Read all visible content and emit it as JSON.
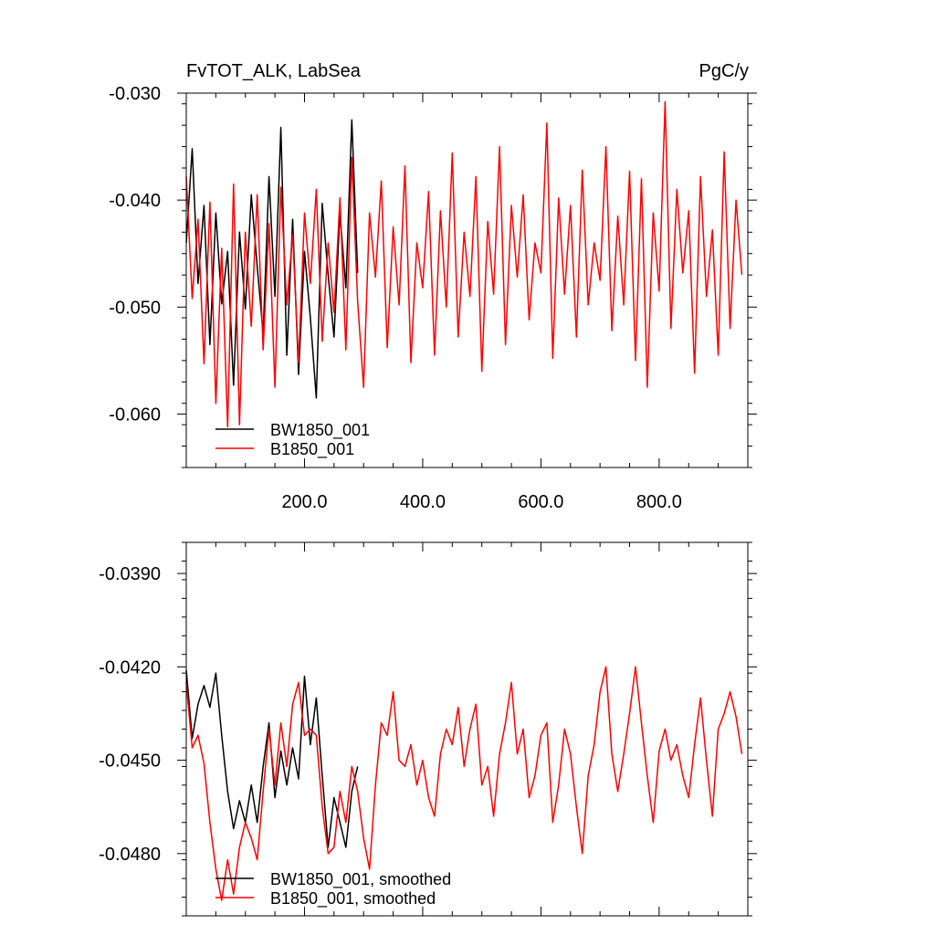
{
  "chart_data": [
    {
      "type": "line",
      "title_left": "FvTOT_ALK, LabSea",
      "title_right": "PgC/y",
      "xlim": [
        0,
        950
      ],
      "ylim": [
        -0.065,
        -0.03
      ],
      "xticks": [
        200,
        400,
        600,
        800
      ],
      "xtick_labels": [
        "200.0",
        "400.0",
        "600.0",
        "800.0"
      ],
      "yticks": [
        -0.03,
        -0.04,
        -0.05,
        -0.06
      ],
      "ytick_labels": [
        "-0.030",
        "-0.040",
        "-0.050",
        "-0.060"
      ],
      "legend_position": "bottom-left",
      "series": [
        {
          "name": "BW1850_001",
          "color": "#000000",
          "x": [
            0,
            10,
            20,
            30,
            40,
            50,
            60,
            70,
            80,
            90,
            100,
            110,
            120,
            130,
            140,
            150,
            160,
            170,
            180,
            190,
            200,
            210,
            220,
            230,
            240,
            250,
            260,
            270,
            280,
            290
          ],
          "y": [
            -0.044,
            -0.0352,
            -0.0478,
            -0.0405,
            -0.0535,
            -0.0412,
            -0.0497,
            -0.0448,
            -0.0573,
            -0.043,
            -0.0502,
            -0.0395,
            -0.0462,
            -0.0525,
            -0.0378,
            -0.049,
            -0.0332,
            -0.0545,
            -0.0418,
            -0.0563,
            -0.0448,
            -0.051,
            -0.0585,
            -0.0403,
            -0.047,
            -0.0528,
            -0.0412,
            -0.0482,
            -0.0325,
            -0.0468
          ]
        },
        {
          "name": "B1850_001",
          "color": "#ff0000",
          "x": [
            0,
            10,
            20,
            30,
            40,
            50,
            60,
            70,
            80,
            90,
            100,
            110,
            120,
            130,
            140,
            150,
            160,
            170,
            180,
            190,
            200,
            210,
            220,
            230,
            240,
            250,
            260,
            270,
            280,
            290,
            300,
            310,
            320,
            330,
            340,
            350,
            360,
            370,
            380,
            390,
            400,
            410,
            420,
            430,
            440,
            450,
            460,
            470,
            480,
            490,
            500,
            510,
            520,
            530,
            540,
            550,
            560,
            570,
            580,
            590,
            600,
            610,
            620,
            630,
            640,
            650,
            660,
            670,
            680,
            690,
            700,
            710,
            720,
            730,
            740,
            750,
            760,
            770,
            780,
            790,
            800,
            810,
            820,
            830,
            840,
            850,
            860,
            870,
            880,
            890,
            900,
            910,
            920,
            930,
            940
          ],
          "y": [
            -0.0378,
            -0.0492,
            -0.0418,
            -0.0553,
            -0.0402,
            -0.059,
            -0.0445,
            -0.0612,
            -0.0385,
            -0.061,
            -0.043,
            -0.0518,
            -0.0395,
            -0.054,
            -0.0422,
            -0.0575,
            -0.0388,
            -0.0498,
            -0.0432,
            -0.0552,
            -0.0412,
            -0.0478,
            -0.039,
            -0.0532,
            -0.044,
            -0.0505,
            -0.0398,
            -0.054,
            -0.036,
            -0.0495,
            -0.0575,
            -0.0412,
            -0.0472,
            -0.0382,
            -0.0538,
            -0.0425,
            -0.0498,
            -0.0368,
            -0.0552,
            -0.044,
            -0.0482,
            -0.0392,
            -0.0545,
            -0.041,
            -0.05,
            -0.0356,
            -0.0528,
            -0.043,
            -0.049,
            -0.0378,
            -0.056,
            -0.042,
            -0.0488,
            -0.035,
            -0.0535,
            -0.0405,
            -0.0472,
            -0.0395,
            -0.0512,
            -0.044,
            -0.0468,
            -0.0328,
            -0.0548,
            -0.0398,
            -0.0488,
            -0.0405,
            -0.0528,
            -0.0372,
            -0.0498,
            -0.044,
            -0.0475,
            -0.035,
            -0.0522,
            -0.0415,
            -0.0498,
            -0.0373,
            -0.055,
            -0.038,
            -0.0575,
            -0.0412,
            -0.0485,
            -0.0308,
            -0.052,
            -0.039,
            -0.0468,
            -0.041,
            -0.0562,
            -0.0378,
            -0.049,
            -0.0428,
            -0.0545,
            -0.0355,
            -0.052,
            -0.04,
            -0.047
          ]
        }
      ]
    },
    {
      "type": "line",
      "xlim": [
        0,
        950
      ],
      "ylim": [
        -0.05,
        -0.038
      ],
      "xticks": [
        200,
        400,
        600,
        800
      ],
      "yticks": [
        -0.039,
        -0.042,
        -0.045,
        -0.048
      ],
      "ytick_labels": [
        "-0.0390",
        "-0.0420",
        "-0.0450",
        "-0.0480"
      ],
      "legend_position": "bottom-left",
      "series": [
        {
          "name": "BW1850_001, smoothed",
          "color": "#000000",
          "x": [
            0,
            10,
            20,
            30,
            40,
            50,
            60,
            70,
            80,
            90,
            100,
            110,
            120,
            130,
            140,
            150,
            160,
            170,
            180,
            190,
            200,
            210,
            220,
            230,
            240,
            250,
            260,
            270,
            280,
            290
          ],
          "y": [
            -0.0421,
            -0.0443,
            -0.0432,
            -0.0426,
            -0.0433,
            -0.0422,
            -0.0442,
            -0.046,
            -0.0472,
            -0.0463,
            -0.047,
            -0.0458,
            -0.047,
            -0.0452,
            -0.0438,
            -0.0462,
            -0.0447,
            -0.0458,
            -0.0446,
            -0.0456,
            -0.0423,
            -0.0445,
            -0.043,
            -0.0455,
            -0.0478,
            -0.0462,
            -0.047,
            -0.0478,
            -0.046,
            -0.0452
          ]
        },
        {
          "name": "B1850_001, smoothed",
          "color": "#ff0000",
          "x": [
            0,
            10,
            20,
            30,
            40,
            50,
            60,
            70,
            80,
            90,
            100,
            110,
            120,
            130,
            140,
            150,
            160,
            170,
            180,
            190,
            200,
            210,
            220,
            230,
            240,
            250,
            260,
            270,
            280,
            290,
            300,
            310,
            320,
            330,
            340,
            350,
            360,
            370,
            380,
            390,
            400,
            410,
            420,
            430,
            440,
            450,
            460,
            470,
            480,
            490,
            500,
            510,
            520,
            530,
            540,
            550,
            560,
            570,
            580,
            590,
            600,
            610,
            620,
            630,
            640,
            650,
            660,
            670,
            680,
            690,
            700,
            710,
            720,
            730,
            740,
            750,
            760,
            770,
            780,
            790,
            800,
            810,
            820,
            830,
            840,
            850,
            860,
            870,
            880,
            890,
            900,
            910,
            920,
            930,
            940
          ],
          "y": [
            -0.0425,
            -0.0446,
            -0.0442,
            -0.0451,
            -0.047,
            -0.0485,
            -0.0495,
            -0.0482,
            -0.0493,
            -0.0478,
            -0.047,
            -0.0475,
            -0.0482,
            -0.046,
            -0.044,
            -0.0458,
            -0.0438,
            -0.0452,
            -0.0432,
            -0.0425,
            -0.0442,
            -0.044,
            -0.0442,
            -0.0465,
            -0.048,
            -0.0478,
            -0.046,
            -0.047,
            -0.0452,
            -0.046,
            -0.0475,
            -0.0485,
            -0.0458,
            -0.0438,
            -0.0442,
            -0.0428,
            -0.045,
            -0.0452,
            -0.0445,
            -0.0458,
            -0.045,
            -0.0462,
            -0.0468,
            -0.0448,
            -0.044,
            -0.0445,
            -0.0433,
            -0.0452,
            -0.044,
            -0.0432,
            -0.0458,
            -0.0452,
            -0.0468,
            -0.0448,
            -0.0438,
            -0.0425,
            -0.0448,
            -0.044,
            -0.0462,
            -0.0455,
            -0.0442,
            -0.0438,
            -0.047,
            -0.0458,
            -0.044,
            -0.0448,
            -0.0465,
            -0.048,
            -0.0455,
            -0.0445,
            -0.0428,
            -0.042,
            -0.0448,
            -0.046,
            -0.0448,
            -0.0435,
            -0.042,
            -0.0438,
            -0.0455,
            -0.047,
            -0.0447,
            -0.044,
            -0.045,
            -0.0445,
            -0.0455,
            -0.0462,
            -0.0445,
            -0.043,
            -0.045,
            -0.0468,
            -0.044,
            -0.0435,
            -0.0428,
            -0.0436,
            -0.0448
          ]
        }
      ]
    }
  ],
  "panels": [
    {
      "title_left": "FvTOT_ALK, LabSea",
      "title_right": "PgC/y"
    },
    {
      "title_left": "",
      "title_right": ""
    }
  ]
}
